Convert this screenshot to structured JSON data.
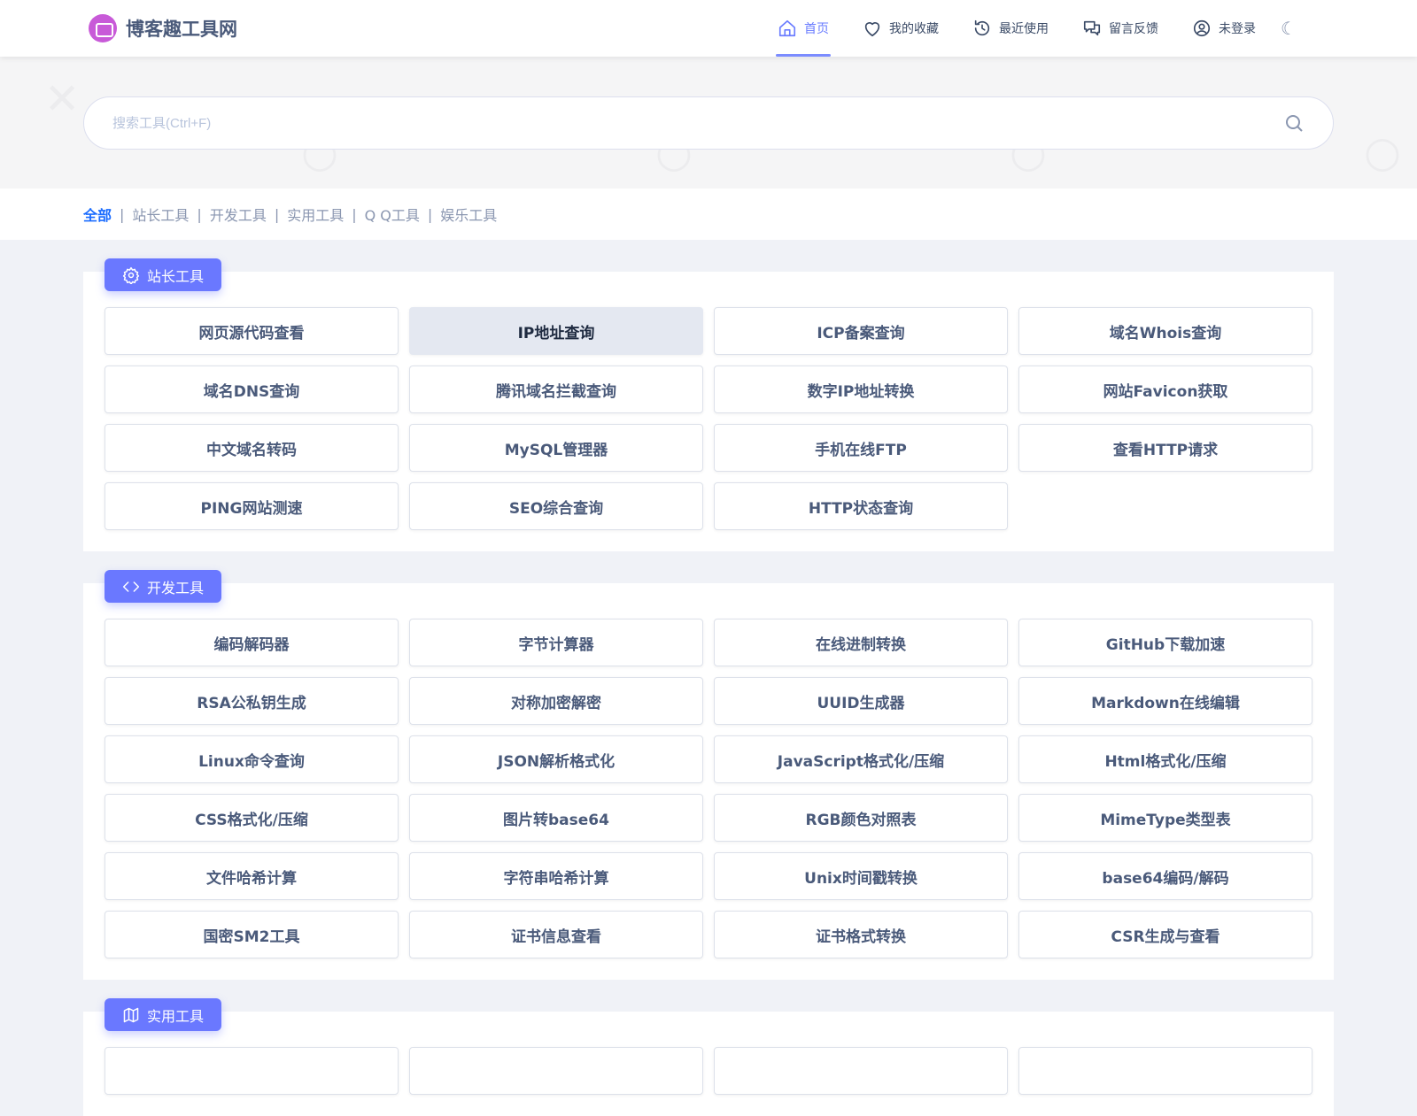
{
  "header": {
    "logo_text": "博客趣工具网",
    "nav": [
      {
        "label": "首页",
        "icon": "home-icon",
        "active": true
      },
      {
        "label": "我的收藏",
        "icon": "heart-icon"
      },
      {
        "label": "最近使用",
        "icon": "history-icon"
      },
      {
        "label": "留言反馈",
        "icon": "chat-icon"
      },
      {
        "label": "未登录",
        "icon": "user-icon"
      }
    ],
    "theme_icon": "moon-icon"
  },
  "search": {
    "placeholder": "搜索工具(Ctrl+F)",
    "value": ""
  },
  "filter": [
    {
      "label": "全部",
      "active": true
    },
    {
      "label": "站长工具"
    },
    {
      "label": "开发工具"
    },
    {
      "label": "实用工具"
    },
    {
      "label": "Q Q工具"
    },
    {
      "label": "娱乐工具"
    }
  ],
  "accent": "#6a78ff",
  "sections": [
    {
      "title": "站长工具",
      "icon": "gear-icon",
      "tools": [
        "网页源代码查看",
        "IP地址查询",
        "ICP备案查询",
        "域名Whois查询",
        "域名DNS查询",
        "腾讯域名拦截查询",
        "数字IP地址转换",
        "网站Favicon获取",
        "中文域名转码",
        "MySQL管理器",
        "手机在线FTP",
        "查看HTTP请求",
        "PING网站测速",
        "SEO综合查询",
        "HTTP状态查询"
      ],
      "hovered": 1
    },
    {
      "title": "开发工具",
      "icon": "code-icon",
      "tools": [
        "编码解码器",
        "字节计算器",
        "在线进制转换",
        "GitHub下载加速",
        "RSA公私钥生成",
        "对称加密解密",
        "UUID生成器",
        "Markdown在线编辑",
        "Linux命令查询",
        "JSON解析格式化",
        "JavaScript格式化/压缩",
        "Html格式化/压缩",
        "CSS格式化/压缩",
        "图片转base64",
        "RGB颜色对照表",
        "MimeType类型表",
        "文件哈希计算",
        "字符串哈希计算",
        "Unix时间戳转换",
        "base64编码/解码",
        "国密SM2工具",
        "证书信息查看",
        "证书格式转换",
        "CSR生成与查看"
      ]
    },
    {
      "title": "实用工具",
      "icon": "map-icon",
      "tools": [
        "",
        "",
        "",
        ""
      ]
    }
  ]
}
